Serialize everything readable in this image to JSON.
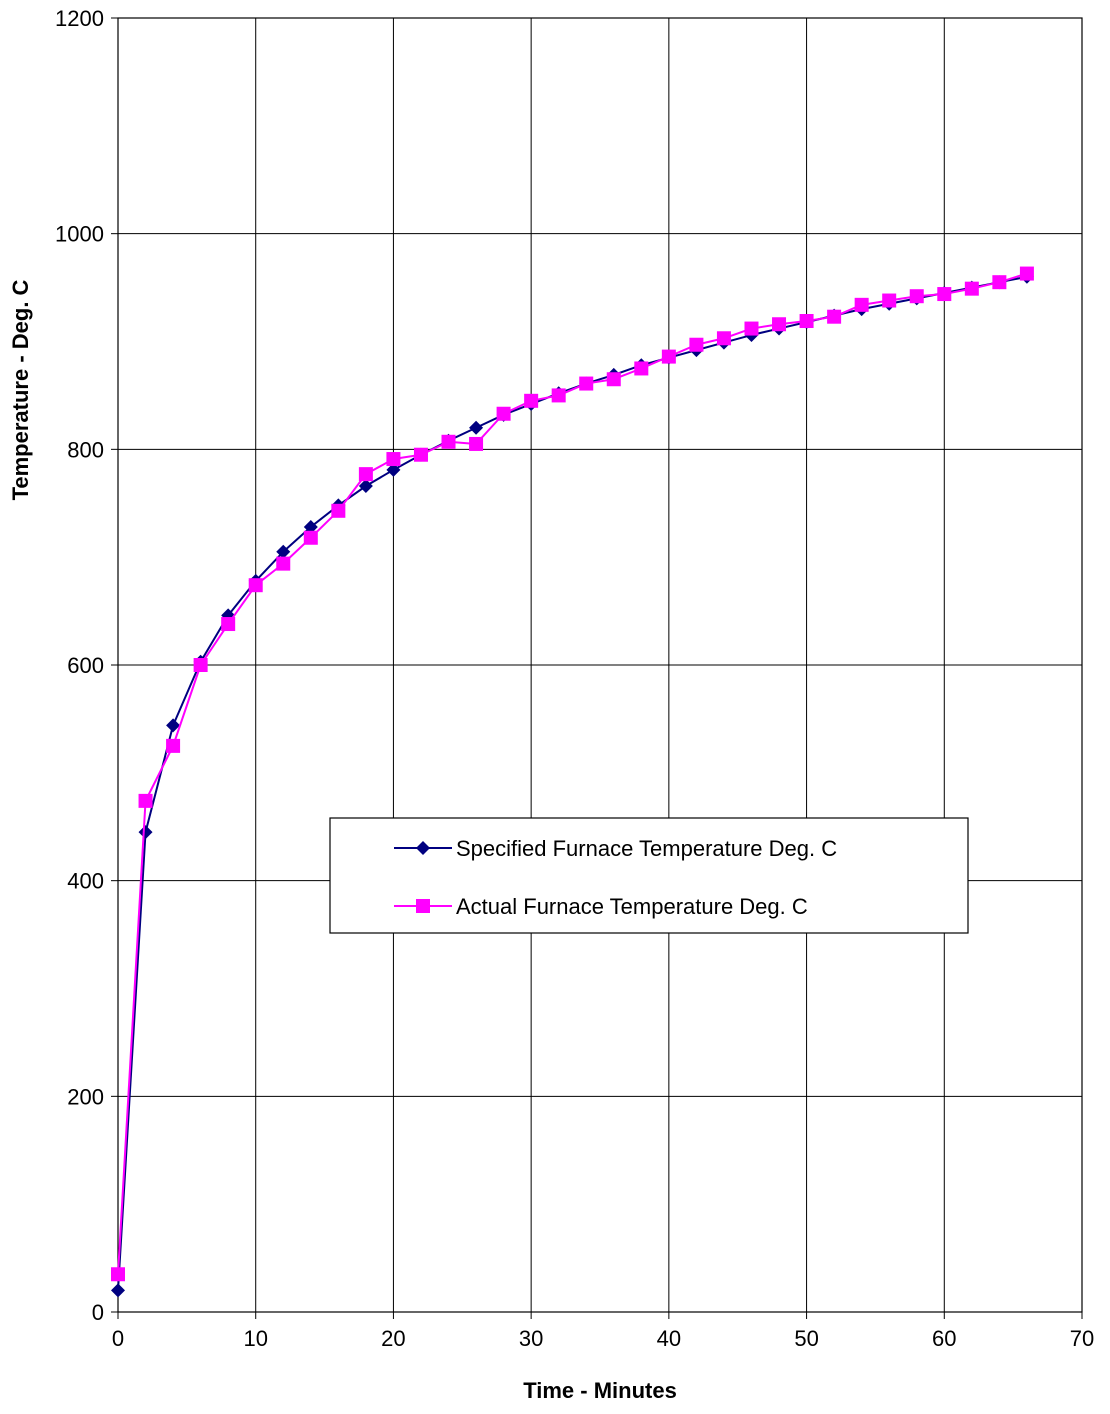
{
  "chart_data": {
    "type": "line",
    "title": "",
    "xlabel": "Time - Minutes",
    "ylabel": "Temperature - Deg. C",
    "xlim": [
      0,
      70
    ],
    "ylim": [
      0,
      1200
    ],
    "xticks": [
      0,
      10,
      20,
      30,
      40,
      50,
      60,
      70
    ],
    "yticks": [
      0,
      200,
      400,
      600,
      800,
      1000,
      1200
    ],
    "grid": true,
    "legend_position": "center-right",
    "series": [
      {
        "name": "Specified Furnace Temperature Deg. C",
        "color": "#000080",
        "marker": "diamond",
        "x": [
          0,
          2,
          4,
          6,
          8,
          10,
          12,
          14,
          16,
          18,
          20,
          22,
          24,
          26,
          28,
          30,
          32,
          34,
          36,
          38,
          40,
          42,
          44,
          46,
          48,
          50,
          52,
          54,
          56,
          58,
          60,
          62,
          64,
          66
        ],
        "y": [
          20,
          445,
          544,
          603,
          646,
          678,
          705,
          728,
          748,
          766,
          781,
          795,
          808,
          820,
          832,
          842,
          852,
          861,
          869,
          878,
          885,
          892,
          899,
          906,
          912,
          918,
          924,
          930,
          935,
          940,
          945,
          950,
          955,
          960
        ]
      },
      {
        "name": "Actual Furnace Temperature Deg. C",
        "color": "#ff00ff",
        "marker": "square",
        "x": [
          0,
          2,
          4,
          6,
          8,
          10,
          12,
          14,
          16,
          18,
          20,
          22,
          24,
          26,
          28,
          30,
          32,
          34,
          36,
          38,
          40,
          42,
          44,
          46,
          48,
          50,
          52,
          54,
          56,
          58,
          60,
          62,
          64,
          66
        ],
        "y": [
          35,
          474,
          525,
          600,
          638,
          674,
          694,
          718,
          743,
          777,
          791,
          795,
          807,
          805,
          833,
          845,
          850,
          861,
          865,
          875,
          886,
          897,
          903,
          912,
          916,
          919,
          923,
          934,
          938,
          942,
          944,
          949,
          955,
          963
        ]
      }
    ]
  }
}
